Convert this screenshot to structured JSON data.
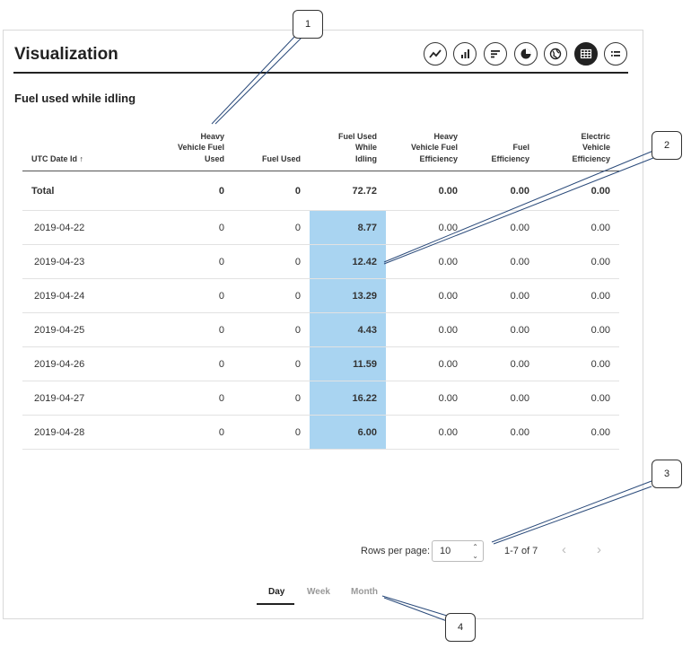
{
  "title": "Visualization",
  "subtitle": "Fuel used while idling",
  "viz_buttons": [
    {
      "icon": "line-chart-icon",
      "active": false
    },
    {
      "icon": "bar-chart-icon",
      "active": false
    },
    {
      "icon": "sort-bars-icon",
      "active": false
    },
    {
      "icon": "pie-chart-icon",
      "active": false
    },
    {
      "icon": "globe-icon",
      "active": false
    },
    {
      "icon": "table-icon",
      "active": true
    },
    {
      "icon": "list-icon",
      "active": false
    }
  ],
  "table": {
    "columns": [
      {
        "lines": [
          "UTC Date Id ↑"
        ]
      },
      {
        "lines": [
          "Heavy",
          "Vehicle Fuel",
          "Used"
        ]
      },
      {
        "lines": [
          "Fuel Used"
        ]
      },
      {
        "lines": [
          "Fuel Used",
          "While",
          "Idling"
        ]
      },
      {
        "lines": [
          "Heavy",
          "Vehicle Fuel",
          "Efficiency"
        ]
      },
      {
        "lines": [
          "Fuel",
          "Efficiency"
        ]
      },
      {
        "lines": [
          "Electric",
          "Vehicle",
          "Efficiency"
        ]
      }
    ],
    "total": [
      "Total",
      "0",
      "0",
      "72.72",
      "0.00",
      "0.00",
      "0.00"
    ],
    "rows": [
      [
        "2019-04-22",
        "0",
        "0",
        "8.77",
        "0.00",
        "0.00",
        "0.00"
      ],
      [
        "2019-04-23",
        "0",
        "0",
        "12.42",
        "0.00",
        "0.00",
        "0.00"
      ],
      [
        "2019-04-24",
        "0",
        "0",
        "13.29",
        "0.00",
        "0.00",
        "0.00"
      ],
      [
        "2019-04-25",
        "0",
        "0",
        "4.43",
        "0.00",
        "0.00",
        "0.00"
      ],
      [
        "2019-04-26",
        "0",
        "0",
        "11.59",
        "0.00",
        "0.00",
        "0.00"
      ],
      [
        "2019-04-27",
        "0",
        "0",
        "16.22",
        "0.00",
        "0.00",
        "0.00"
      ],
      [
        "2019-04-28",
        "0",
        "0",
        "6.00",
        "0.00",
        "0.00",
        "0.00"
      ]
    ],
    "highlight_column": 3,
    "highlight_color": "#a9d4f1"
  },
  "pagination": {
    "rows_per_page_label": "Rows per page:",
    "rows_per_page": "10",
    "range": "1-7 of 7",
    "prev_icon": "chevron-left-icon",
    "next_icon": "chevron-right-icon"
  },
  "tabs": [
    {
      "label": "Day",
      "active": true
    },
    {
      "label": "Week",
      "active": false
    },
    {
      "label": "Month",
      "active": false
    }
  ],
  "callouts": [
    "1",
    "2",
    "3",
    "4"
  ]
}
